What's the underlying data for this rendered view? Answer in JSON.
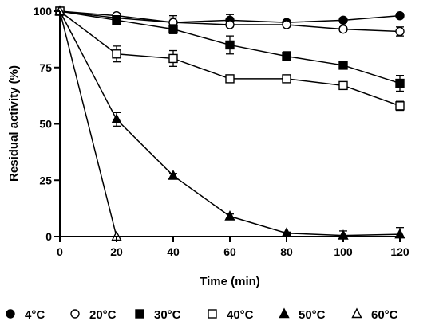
{
  "chart_data": {
    "type": "line",
    "title": "",
    "xlabel": "Time (min)",
    "ylabel": "Residual activity (%)",
    "xlim": [
      0,
      120
    ],
    "ylim": [
      0,
      100
    ],
    "xticks": [
      0,
      20,
      40,
      60,
      80,
      100,
      120
    ],
    "yticks": [
      0,
      25,
      50,
      75,
      100
    ],
    "grid": false,
    "legend_position": "bottom",
    "series": [
      {
        "name": "4°C",
        "marker": "filled-circle",
        "x": [
          0,
          20,
          40,
          60,
          80,
          100,
          120
        ],
        "y": [
          100,
          97,
          95,
          96,
          95,
          96,
          98
        ],
        "err": [
          0,
          1.5,
          3,
          2.5,
          1,
          1,
          1
        ]
      },
      {
        "name": "20°C",
        "marker": "open-circle",
        "x": [
          0,
          20,
          40,
          60,
          80,
          100,
          120
        ],
        "y": [
          100,
          98,
          95,
          94,
          94,
          92,
          91
        ],
        "err": [
          0,
          1,
          2,
          1,
          1,
          1,
          2
        ]
      },
      {
        "name": "30°C",
        "marker": "filled-square",
        "x": [
          0,
          20,
          40,
          60,
          80,
          100,
          120
        ],
        "y": [
          100,
          96,
          92,
          85,
          80,
          76,
          68
        ],
        "err": [
          0,
          2,
          2,
          4,
          2,
          1.5,
          3.5
        ]
      },
      {
        "name": "40°C",
        "marker": "open-square",
        "x": [
          0,
          20,
          40,
          60,
          80,
          100,
          120
        ],
        "y": [
          100,
          81,
          79,
          70,
          70,
          67,
          58
        ],
        "err": [
          0,
          3.5,
          3.5,
          1,
          1,
          1,
          2
        ]
      },
      {
        "name": "50°C",
        "marker": "filled-triangle",
        "x": [
          0,
          20,
          40,
          60,
          80,
          100,
          120
        ],
        "y": [
          100,
          52,
          27,
          9,
          1.5,
          0.5,
          1
        ],
        "err": [
          0,
          3,
          1,
          1,
          0.5,
          2,
          3
        ]
      },
      {
        "name": "60°C",
        "marker": "open-triangle",
        "x": [
          0,
          20
        ],
        "y": [
          100,
          0
        ],
        "err": [
          0,
          0
        ]
      }
    ]
  }
}
